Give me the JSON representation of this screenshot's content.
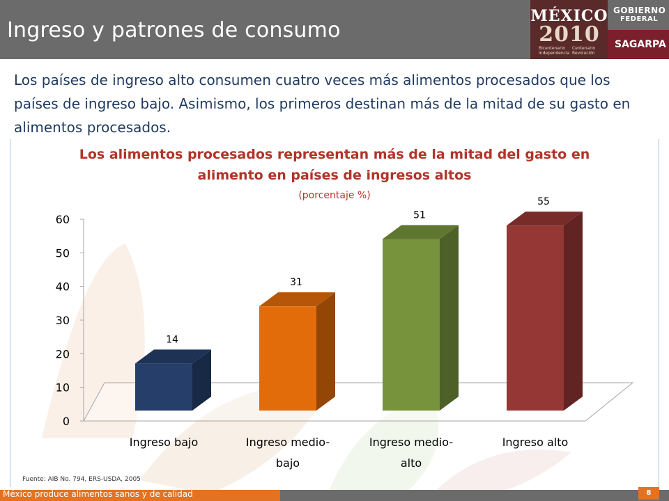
{
  "header": {
    "title": "Ingreso y patrones de consumo",
    "logo_mexico": {
      "title": "MÉXICO",
      "year": "2010",
      "sub_left": "Bicentenario Independencia",
      "sub_right": "Centenario Revolución"
    },
    "logo_gobierno": {
      "line1": "GOBIERNO",
      "line2": "FEDERAL"
    },
    "logo_sagarpa": "SAGARPA"
  },
  "intro_text": "Los países de ingreso alto consumen cuatro veces más alimentos procesados que los países de ingreso bajo. Asimismo, los primeros destinan más de la mitad de su gasto en alimentos procesados.",
  "chart_data": {
    "type": "bar",
    "title": "Los alimentos procesados representan más de la mitad del gasto en alimento en países de ingresos altos",
    "subtitle": "(porcentaje %)",
    "categories": [
      "Ingreso bajo",
      "Ingreso medio-bajo",
      "Ingreso medio-alto",
      "Ingreso alto"
    ],
    "category_lines": [
      [
        "Ingreso bajo"
      ],
      [
        "Ingreso medio-",
        "bajo"
      ],
      [
        "Ingreso medio-",
        "alto"
      ],
      [
        "Ingreso alto"
      ]
    ],
    "values": [
      14,
      31,
      51,
      55
    ],
    "colors": [
      "#253f6a",
      "#e36c0a",
      "#77933c",
      "#953735"
    ],
    "ylim": [
      0,
      60
    ],
    "yticks": [
      0,
      10,
      20,
      30,
      40,
      50,
      60
    ],
    "xlabel": "",
    "ylabel": "",
    "style": "3d-column",
    "grid": false,
    "legend": "none"
  },
  "source": "Fuente: AIB No. 794, ERS-USDA, 2005",
  "footer": {
    "text": "México produce alimentos sanos y de calidad",
    "page": "8"
  }
}
